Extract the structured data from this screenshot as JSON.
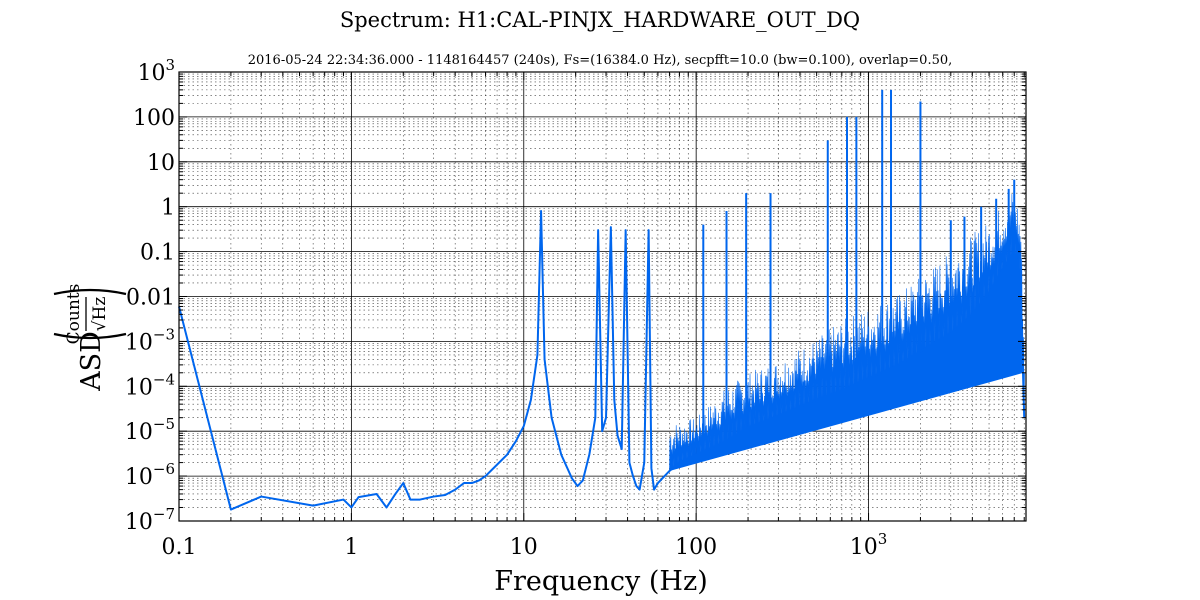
{
  "chart_data": {
    "type": "line",
    "title": "Spectrum: H1:CAL-PINJX_HARDWARE_OUT_DQ",
    "subtitle": "2016-05-24 22:34:36.000 - 1148164457 (240s), Fs=(16384.0 Hz), secpfft=10.0 (bw=0.100), overlap=0.50,",
    "xlabel": "Frequency (Hz)",
    "ylabel": {
      "prefix": "ASD",
      "numerator": "Counts",
      "denominator": "√Hz"
    },
    "x_scale": "log",
    "y_scale": "log",
    "xlim": [
      0.1,
      8192
    ],
    "ylim": [
      1e-07,
      1000
    ],
    "grid": true,
    "line_color": "#0066ee",
    "x_ticks": [
      {
        "value": 0.1,
        "label": "0.1"
      },
      {
        "value": 1,
        "label": "1"
      },
      {
        "value": 10,
        "label": "10"
      },
      {
        "value": 100,
        "label": "100"
      },
      {
        "value": 1000,
        "label": "10",
        "exp": "3"
      }
    ],
    "y_ticks": [
      {
        "value": 1e-07,
        "label": "10",
        "exp": "−7"
      },
      {
        "value": 1e-06,
        "label": "10",
        "exp": "−6"
      },
      {
        "value": 1e-05,
        "label": "10",
        "exp": "−5"
      },
      {
        "value": 0.0001,
        "label": "10",
        "exp": "−4"
      },
      {
        "value": 0.001,
        "label": "10",
        "exp": "−3"
      },
      {
        "value": 0.01,
        "label": "0.01"
      },
      {
        "value": 0.1,
        "label": "0.1"
      },
      {
        "value": 1,
        "label": "1"
      },
      {
        "value": 10,
        "label": "10"
      },
      {
        "value": 100,
        "label": "100"
      },
      {
        "value": 1000,
        "label": "10",
        "exp": "3"
      }
    ],
    "series": [
      {
        "baseline": {
          "x": [
            0.1,
            0.2,
            0.3,
            0.6,
            0.9,
            1.0,
            1.1,
            1.4,
            1.6,
            1.8,
            2.0,
            2.2,
            2.5,
            3.0,
            3.5,
            4.0,
            4.5,
            5.0,
            5.5,
            6.0,
            7.0,
            8.0,
            9.0,
            10.0,
            11.0,
            12.0,
            12.6,
            13.2,
            14.5,
            16.5,
            19.0,
            20.5,
            22.0,
            24.0,
            26.0,
            27.0,
            28.5,
            30.0,
            32.0,
            33.5,
            35.0,
            37.0,
            39.0,
            41.0,
            43.0,
            45.0,
            47.0,
            50.0,
            53.0,
            55.0,
            57.0,
            60.0,
            70.0,
            80.0,
            100.0,
            150.0,
            200.0,
            300.0,
            500.0,
            700.0,
            1000.0,
            1500.0,
            2000.0,
            3000.0,
            4000.0,
            5000.0,
            6000.0,
            7000.0,
            7600.0,
            8000.0
          ],
          "y": [
            0.006,
            1.8e-07,
            3.5e-07,
            2.2e-07,
            3e-07,
            2e-07,
            3.4e-07,
            4e-07,
            2e-07,
            4e-07,
            7e-07,
            3e-07,
            3e-07,
            3.5e-07,
            3.8e-07,
            5e-07,
            7e-07,
            7e-07,
            8e-07,
            1e-06,
            1.8e-06,
            3e-06,
            6e-06,
            1.3e-05,
            5e-05,
            0.0005,
            0.8,
            0.0004,
            2e-05,
            3e-06,
            9e-07,
            6e-07,
            8e-07,
            3e-06,
            2e-05,
            0.3,
            1e-05,
            2e-05,
            0.35,
            5e-05,
            8e-06,
            4e-06,
            0.3,
            2e-06,
            1e-06,
            6e-07,
            5e-07,
            2e-06,
            0.3,
            1.5e-06,
            5e-07,
            7e-07,
            1.3e-06,
            2e-06,
            3e-06,
            6e-06,
            1.2e-05,
            2.2e-05,
            5e-05,
            8e-05,
            0.00015,
            0.0003,
            0.0006,
            0.0015,
            0.004,
            0.012,
            0.04,
            0.1,
            0.03,
            2e-05
          ]
        },
        "noise_band": {
          "x": [
            70,
            100,
            150,
            200,
            300,
            500,
            700,
            1000,
            1500,
            2000,
            3000,
            4000,
            5000,
            6000,
            7000,
            7600,
            8000
          ],
          "upper": [
            1.5e-05,
            2e-05,
            0.0001,
            0.0002,
            0.0004,
            0.0012,
            0.003,
            0.006,
            0.012,
            0.03,
            0.1,
            0.25,
            0.5,
            1.2,
            3.0,
            0.5,
            0.0005
          ]
        },
        "peaks": [
          {
            "f": 110,
            "a": 0.4
          },
          {
            "f": 150,
            "a": 0.8
          },
          {
            "f": 195,
            "a": 2.0
          },
          {
            "f": 270,
            "a": 2.0
          },
          {
            "f": 580,
            "a": 30
          },
          {
            "f": 750,
            "a": 100
          },
          {
            "f": 850,
            "a": 100
          },
          {
            "f": 1200,
            "a": 400
          },
          {
            "f": 1350,
            "a": 400
          },
          {
            "f": 2000,
            "a": 220
          },
          {
            "f": 3000,
            "a": 0.5
          },
          {
            "f": 3600,
            "a": 0.6
          },
          {
            "f": 4500,
            "a": 1.0
          },
          {
            "f": 5500,
            "a": 1.5
          },
          {
            "f": 6500,
            "a": 2.5
          },
          {
            "f": 7000,
            "a": 4.0
          }
        ]
      }
    ]
  }
}
